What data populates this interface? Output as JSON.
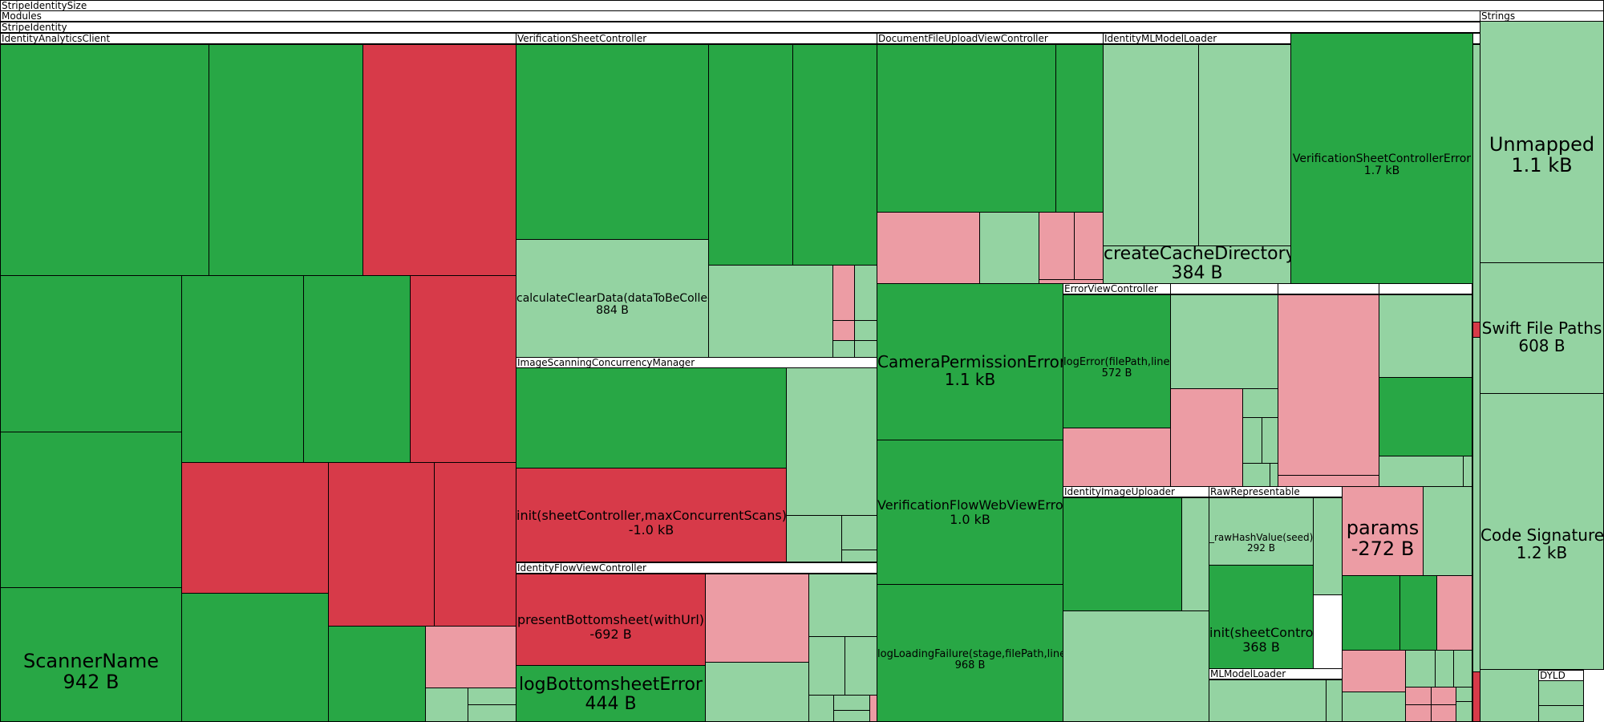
{
  "colors": {
    "increase_strong": "#28a745",
    "increase_light": "#94d3a2",
    "decrease_strong": "#d73a49",
    "decrease_light": "#ec9ca4"
  },
  "headers": {
    "root": "StripeIdentitySize",
    "modules": "Modules",
    "strings": "Strings",
    "stripe_identity": "StripeIdentity",
    "analytics_client": "IdentityAnalyticsClient",
    "verification_sheet_controller": "VerificationSheetController",
    "document_upload": "DocumentFileUploadViewController",
    "ml_model_loader": "IdentityMLModelLoader",
    "image_scanning": "ImageScanningConcurrencyManager",
    "flow_view_controller": "IdentityFlowViewController",
    "error_view_controller": "ErrorViewController",
    "image_uploader": "IdentityImageUploader",
    "raw_representable": "RawRepresentable",
    "ml_model_loader_2": "MLModelLoader",
    "dyld": "DYLD"
  },
  "chart_data": {
    "type": "treemap",
    "title": "StripeIdentitySize",
    "groups": [
      "Modules",
      "Strings"
    ],
    "labeled_nodes": [
      {
        "name": "ScannerName",
        "size": "942 B",
        "change": "increase"
      },
      {
        "name": "calculateClearData(dataToBeCollected)",
        "size": "884 B",
        "change": "increase"
      },
      {
        "name": "init(sheetController,maxConcurrentScans)",
        "size": "-1.0 kB",
        "change": "decrease"
      },
      {
        "name": "presentBottomsheet(withUrl)",
        "size": "-692 B",
        "change": "decrease"
      },
      {
        "name": "logBottomsheetError",
        "size": "444 B",
        "change": "increase"
      },
      {
        "name": "createCacheDirectory",
        "size": "384 B",
        "change": "increase"
      },
      {
        "name": "VerificationSheetControllerError",
        "size": "1.7 kB",
        "change": "increase"
      },
      {
        "name": "CameraPermissionError",
        "size": "1.1 kB",
        "change": "increase"
      },
      {
        "name": "VerificationFlowWebViewError",
        "size": "1.0 kB",
        "change": "increase"
      },
      {
        "name": "logLoadingFailure(stage,filePath,line)",
        "size": "968 B",
        "change": "increase"
      },
      {
        "name": "logError(filePath,line)",
        "size": "572 B",
        "change": "increase"
      },
      {
        "name": "_rawHashValue(seed)",
        "size": "292 B",
        "change": "increase"
      },
      {
        "name": "init(sheetController)",
        "size": "368 B",
        "change": "increase"
      },
      {
        "name": "params",
        "size": "-272 B",
        "change": "decrease"
      },
      {
        "name": "Unmapped",
        "size": "1.1 kB",
        "change": "increase"
      },
      {
        "name": "Swift File Paths",
        "size": "608 B",
        "change": "increase"
      },
      {
        "name": "Code Signature",
        "size": "1.2 kB",
        "change": "increase"
      }
    ]
  }
}
